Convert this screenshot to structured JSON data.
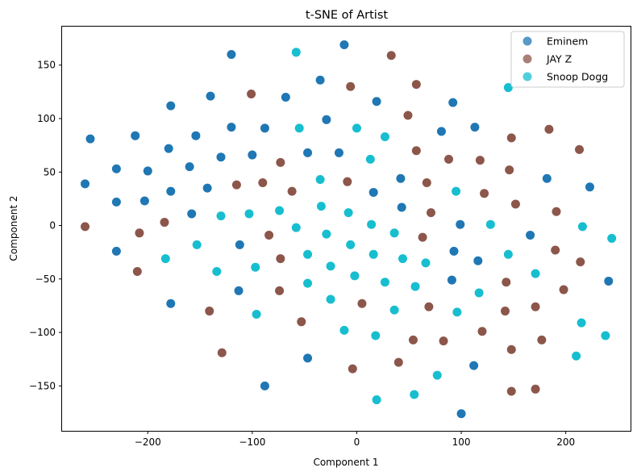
{
  "chart_data": {
    "type": "scatter",
    "title": "t-SNE of Artist",
    "xlabel": "Component 1",
    "ylabel": "Component 2",
    "xlim": [
      -282,
      262
    ],
    "ylim": [
      -192,
      186
    ],
    "xticks": [
      -200,
      -100,
      0,
      100,
      200
    ],
    "yticks": [
      -150,
      -100,
      -50,
      0,
      50,
      100,
      150
    ],
    "grid": false,
    "legend_position": "top-right",
    "series": [
      {
        "name": "Eminem",
        "color": "#1f77b4",
        "points": [
          [
            -120,
            160
          ],
          [
            -12,
            169
          ],
          [
            -35,
            136
          ],
          [
            -68,
            120
          ],
          [
            -140,
            121
          ],
          [
            -178,
            112
          ],
          [
            19,
            116
          ],
          [
            92,
            115
          ],
          [
            -255,
            81
          ],
          [
            -212,
            84
          ],
          [
            -120,
            92
          ],
          [
            -88,
            91
          ],
          [
            -29,
            99
          ],
          [
            81,
            88
          ],
          [
            113,
            92
          ],
          [
            -180,
            72
          ],
          [
            -154,
            84
          ],
          [
            -130,
            64
          ],
          [
            -100,
            66
          ],
          [
            -47,
            68
          ],
          [
            -17,
            68
          ],
          [
            -230,
            53
          ],
          [
            -200,
            51
          ],
          [
            -160,
            55
          ],
          [
            -260,
            39
          ],
          [
            -143,
            35
          ],
          [
            -178,
            32
          ],
          [
            16,
            31
          ],
          [
            42,
            44
          ],
          [
            182,
            44
          ],
          [
            223,
            36
          ],
          [
            -230,
            22
          ],
          [
            -203,
            23
          ],
          [
            -158,
            11
          ],
          [
            43,
            17
          ],
          [
            99,
            1
          ],
          [
            -112,
            -18
          ],
          [
            -230,
            -24
          ],
          [
            166,
            -9
          ],
          [
            93,
            -24
          ],
          [
            116,
            -33
          ],
          [
            -113,
            -61
          ],
          [
            91,
            -51
          ],
          [
            241,
            -52
          ],
          [
            -178,
            -73
          ],
          [
            -47,
            -124
          ],
          [
            112,
            -131
          ],
          [
            -88,
            -150
          ],
          [
            100,
            -176
          ]
        ]
      },
      {
        "name": "JAY Z",
        "color": "#8c564b",
        "points": [
          [
            33,
            159
          ],
          [
            -101,
            123
          ],
          [
            -6,
            130
          ],
          [
            57,
            132
          ],
          [
            49,
            103
          ],
          [
            148,
            82
          ],
          [
            184,
            90
          ],
          [
            213,
            71
          ],
          [
            57,
            70
          ],
          [
            88,
            62
          ],
          [
            118,
            61
          ],
          [
            146,
            52
          ],
          [
            -73,
            59
          ],
          [
            -115,
            38
          ],
          [
            -90,
            40
          ],
          [
            -62,
            32
          ],
          [
            -9,
            41
          ],
          [
            67,
            40
          ],
          [
            122,
            30
          ],
          [
            152,
            20
          ],
          [
            -260,
            -1
          ],
          [
            -208,
            -7
          ],
          [
            -184,
            3
          ],
          [
            71,
            12
          ],
          [
            191,
            13
          ],
          [
            -84,
            -9
          ],
          [
            63,
            -11
          ],
          [
            -73,
            -31
          ],
          [
            190,
            -23
          ],
          [
            214,
            -34
          ],
          [
            -210,
            -43
          ],
          [
            143,
            -53
          ],
          [
            198,
            -60
          ],
          [
            -74,
            -61
          ],
          [
            5,
            -73
          ],
          [
            69,
            -76
          ],
          [
            171,
            -76
          ],
          [
            142,
            -80
          ],
          [
            -141,
            -80
          ],
          [
            -53,
            -90
          ],
          [
            120,
            -99
          ],
          [
            54,
            -107
          ],
          [
            83,
            -108
          ],
          [
            177,
            -107
          ],
          [
            148,
            -116
          ],
          [
            -129,
            -119
          ],
          [
            40,
            -128
          ],
          [
            -4,
            -134
          ],
          [
            148,
            -155
          ],
          [
            171,
            -153
          ]
        ]
      },
      {
        "name": "Snoop Dogg",
        "color": "#17becf",
        "points": [
          [
            -58,
            162
          ],
          [
            145,
            129
          ],
          [
            -55,
            91
          ],
          [
            0,
            91
          ],
          [
            27,
            83
          ],
          [
            13,
            62
          ],
          [
            -35,
            43
          ],
          [
            95,
            32
          ],
          [
            -34,
            18
          ],
          [
            -74,
            14
          ],
          [
            -103,
            11
          ],
          [
            -130,
            9
          ],
          [
            -8,
            12
          ],
          [
            14,
            1
          ],
          [
            128,
            1
          ],
          [
            216,
            -1
          ],
          [
            -58,
            -2
          ],
          [
            -29,
            -8
          ],
          [
            36,
            -7
          ],
          [
            244,
            -12
          ],
          [
            -153,
            -18
          ],
          [
            -6,
            -18
          ],
          [
            -183,
            -31
          ],
          [
            -47,
            -27
          ],
          [
            16,
            -27
          ],
          [
            44,
            -31
          ],
          [
            66,
            -35
          ],
          [
            145,
            -27
          ],
          [
            -97,
            -39
          ],
          [
            -25,
            -38
          ],
          [
            -134,
            -43
          ],
          [
            -2,
            -47
          ],
          [
            27,
            -53
          ],
          [
            -47,
            -54
          ],
          [
            56,
            -57
          ],
          [
            171,
            -45
          ],
          [
            117,
            -63
          ],
          [
            -25,
            -69
          ],
          [
            -96,
            -83
          ],
          [
            36,
            -79
          ],
          [
            96,
            -81
          ],
          [
            215,
            -91
          ],
          [
            -12,
            -98
          ],
          [
            18,
            -103
          ],
          [
            238,
            -103
          ],
          [
            210,
            -122
          ],
          [
            77,
            -140
          ],
          [
            55,
            -158
          ],
          [
            19,
            -163
          ]
        ]
      }
    ]
  }
}
